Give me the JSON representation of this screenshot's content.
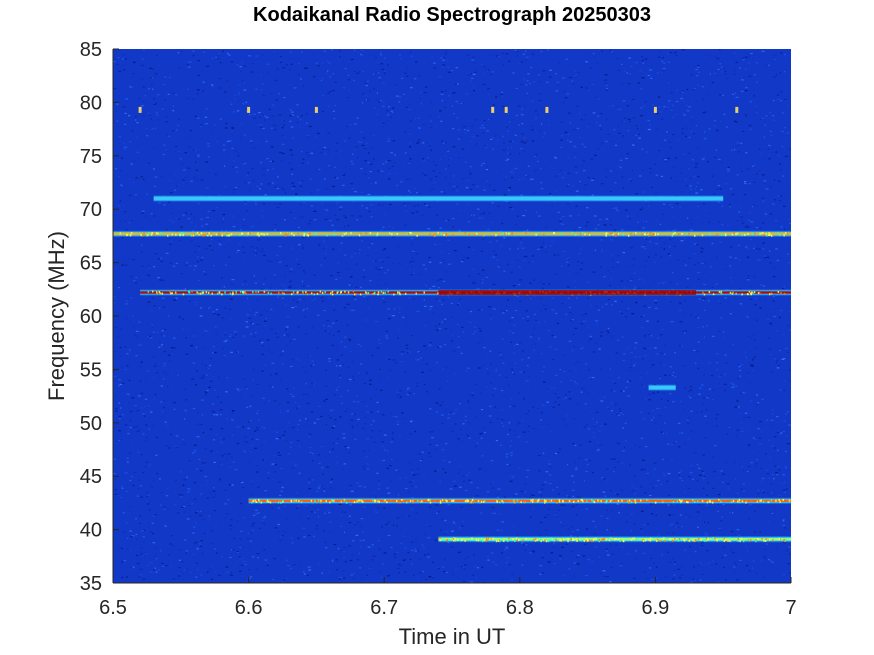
{
  "chart_data": {
    "type": "heatmap",
    "title": "Kodaikanal Radio Spectrograph  20250303",
    "xlabel": "Time in UT",
    "ylabel": "Frequency (MHz)",
    "xlim": [
      6.5,
      7.0
    ],
    "ylim": [
      35,
      85
    ],
    "xticks": [
      6.5,
      6.6,
      6.7,
      6.8,
      6.9,
      7
    ],
    "xtick_labels": [
      "6.5",
      "6.6",
      "6.7",
      "6.8",
      "6.9",
      "7"
    ],
    "yticks": [
      35,
      40,
      45,
      50,
      55,
      60,
      65,
      70,
      75,
      80,
      85
    ],
    "ytick_labels": [
      "35",
      "40",
      "45",
      "50",
      "55",
      "60",
      "65",
      "70",
      "75",
      "80",
      "85"
    ],
    "colormap": "jet",
    "background_color": "#1238c8",
    "grid": false,
    "bands": [
      {
        "freq_mhz": 67.7,
        "t_start": 6.5,
        "t_end": 7.0,
        "intensity": "high",
        "peak_color": "#ffb000"
      },
      {
        "freq_mhz": 62.2,
        "t_start": 6.52,
        "t_end": 7.0,
        "intensity": "very high",
        "peak_color": "#b00000"
      },
      {
        "freq_mhz": 42.7,
        "t_start": 6.6,
        "t_end": 7.0,
        "intensity": "medium-high",
        "peak_color": "#ff6000"
      },
      {
        "freq_mhz": 39.1,
        "t_start": 6.74,
        "t_end": 7.0,
        "intensity": "medium",
        "peak_color": "#a0ff60"
      },
      {
        "freq_mhz": 71.0,
        "t_start": 6.53,
        "t_end": 6.95,
        "intensity": "low",
        "peak_color": "#30c8ff"
      },
      {
        "freq_mhz": 53.3,
        "t_start": 6.895,
        "t_end": 6.915,
        "intensity": "low",
        "peak_color": "#60e0ff"
      }
    ],
    "bursts": [
      {
        "time": 6.52,
        "freq_mhz": 79.3
      },
      {
        "time": 6.6,
        "freq_mhz": 79.3
      },
      {
        "time": 6.65,
        "freq_mhz": 79.3
      },
      {
        "time": 6.78,
        "freq_mhz": 79.3
      },
      {
        "time": 6.79,
        "freq_mhz": 79.3
      },
      {
        "time": 6.82,
        "freq_mhz": 79.3
      },
      {
        "time": 6.9,
        "freq_mhz": 79.3
      },
      {
        "time": 6.96,
        "freq_mhz": 79.3
      }
    ]
  }
}
